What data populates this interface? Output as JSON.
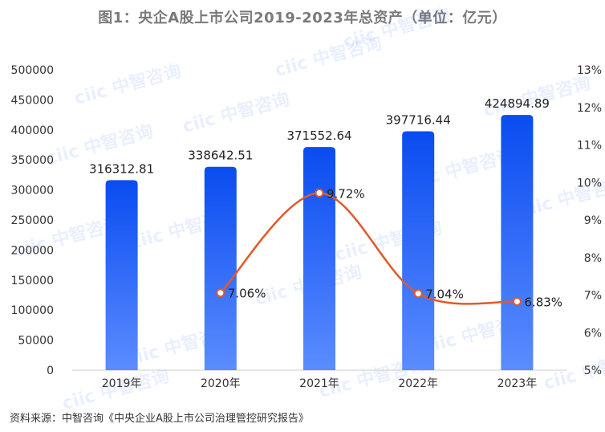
{
  "title": "图1：央企A股上市公司2019-2023年总资产（单位：亿元）",
  "source": "资料来源：中智咨询《中央企业A股上市公司治理管控研究报告》",
  "watermark": "ciic 中智咨询",
  "colors": {
    "bar_top": "#0a4cf0",
    "bar_bottom": "#5b8cff",
    "line": "#e05a2b",
    "marker_fill": "#ffffff"
  },
  "chart_data": {
    "type": "bar",
    "categories": [
      "2019年",
      "2020年",
      "2021年",
      "2022年",
      "2023年"
    ],
    "series": [
      {
        "type": "bar",
        "axis": "left",
        "values": [
          316312.81,
          338642.51,
          371552.64,
          397716.44,
          424894.89
        ],
        "labels": [
          "316312.81",
          "338642.51",
          "371552.64",
          "397716.44",
          "424894.89"
        ]
      },
      {
        "type": "line",
        "axis": "right",
        "values": [
          null,
          7.06,
          9.72,
          7.04,
          6.83
        ],
        "labels": [
          "",
          "7.06%",
          "9.72%",
          "7.04%",
          "6.83%"
        ]
      }
    ],
    "y_left": {
      "min": 0,
      "max": 500000,
      "ticks": [
        "0",
        "50000",
        "100000",
        "150000",
        "200000",
        "250000",
        "300000",
        "350000",
        "400000",
        "450000",
        "500000"
      ]
    },
    "y_right": {
      "min": 5,
      "max": 13,
      "ticks": [
        "5%",
        "6%",
        "7%",
        "8%",
        "9%",
        "10%",
        "11%",
        "12%",
        "13%"
      ]
    },
    "grid": false,
    "legend": "none"
  }
}
